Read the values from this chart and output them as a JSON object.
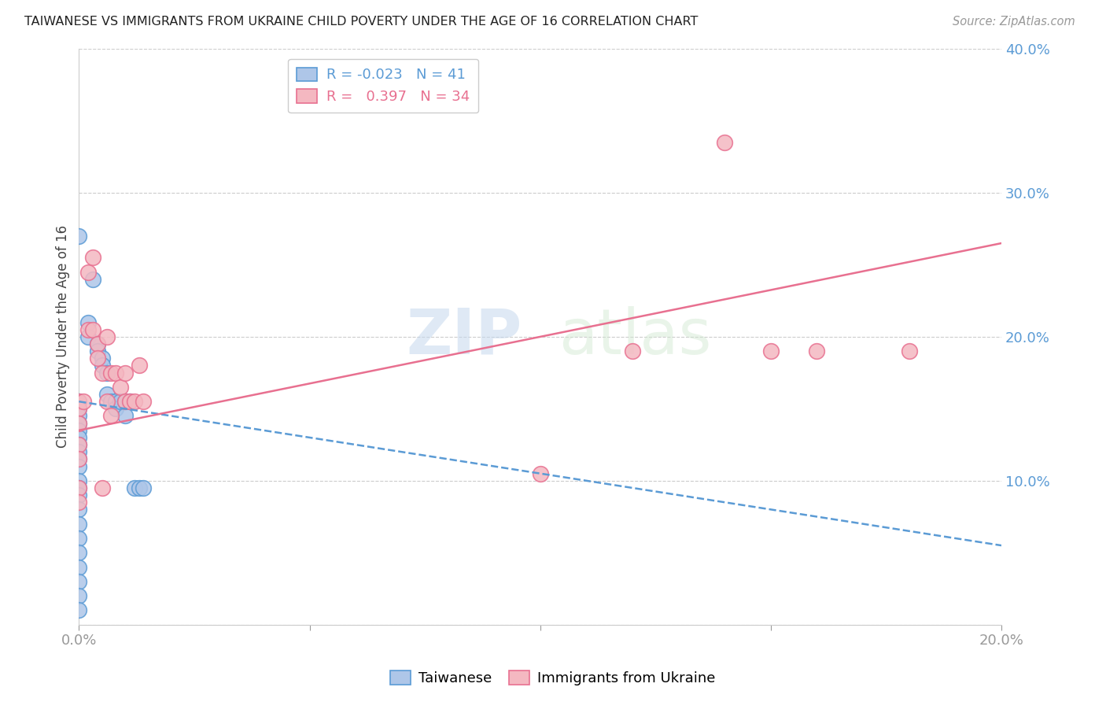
{
  "title": "TAIWANESE VS IMMIGRANTS FROM UKRAINE CHILD POVERTY UNDER THE AGE OF 16 CORRELATION CHART",
  "source": "Source: ZipAtlas.com",
  "ylabel": "Child Poverty Under the Age of 16",
  "xlim": [
    0.0,
    0.2
  ],
  "ylim": [
    0.0,
    0.4
  ],
  "xticks": [
    0.0,
    0.05,
    0.1,
    0.15,
    0.2
  ],
  "yticks": [
    0.0,
    0.1,
    0.2,
    0.3,
    0.4
  ],
  "ytick_labels": [
    "",
    "10.0%",
    "20.0%",
    "30.0%",
    "40.0%"
  ],
  "xtick_labels": [
    "0.0%",
    "",
    "",
    "",
    "20.0%"
  ],
  "taiwanese_color": "#aec6e8",
  "ukraine_color": "#f4b8c1",
  "taiwanese_edge": "#5b9bd5",
  "ukraine_edge": "#e87090",
  "trend_taiwanese_color": "#5b9bd5",
  "trend_ukraine_color": "#e87090",
  "legend_R_taiwanese": "-0.023",
  "legend_N_taiwanese": "41",
  "legend_R_ukraine": "0.397",
  "legend_N_ukraine": "34",
  "taiwanese_x": [
    0.0,
    0.0,
    0.0,
    0.0,
    0.0,
    0.0,
    0.0,
    0.0,
    0.0,
    0.0,
    0.0,
    0.0,
    0.0,
    0.0,
    0.0,
    0.0,
    0.0,
    0.0,
    0.0,
    0.0,
    0.0,
    0.002,
    0.002,
    0.003,
    0.004,
    0.004,
    0.005,
    0.005,
    0.006,
    0.006,
    0.007,
    0.008,
    0.008,
    0.009,
    0.01,
    0.01,
    0.011,
    0.012,
    0.013,
    0.014,
    0.0
  ],
  "taiwanese_y": [
    0.155,
    0.15,
    0.145,
    0.14,
    0.135,
    0.13,
    0.125,
    0.12,
    0.115,
    0.11,
    0.1,
    0.095,
    0.09,
    0.08,
    0.07,
    0.06,
    0.05,
    0.04,
    0.03,
    0.02,
    0.01,
    0.21,
    0.2,
    0.24,
    0.195,
    0.19,
    0.185,
    0.18,
    0.175,
    0.16,
    0.155,
    0.155,
    0.15,
    0.155,
    0.155,
    0.145,
    0.155,
    0.095,
    0.095,
    0.095,
    0.27
  ],
  "ukraine_x": [
    0.0,
    0.0,
    0.0,
    0.0,
    0.0,
    0.0,
    0.0,
    0.001,
    0.002,
    0.002,
    0.003,
    0.003,
    0.004,
    0.004,
    0.005,
    0.005,
    0.006,
    0.006,
    0.007,
    0.007,
    0.008,
    0.009,
    0.01,
    0.01,
    0.011,
    0.012,
    0.013,
    0.014,
    0.1,
    0.12,
    0.14,
    0.15,
    0.16,
    0.18
  ],
  "ukraine_y": [
    0.155,
    0.15,
    0.14,
    0.125,
    0.115,
    0.095,
    0.085,
    0.155,
    0.245,
    0.205,
    0.255,
    0.205,
    0.195,
    0.185,
    0.175,
    0.095,
    0.2,
    0.155,
    0.145,
    0.175,
    0.175,
    0.165,
    0.175,
    0.155,
    0.155,
    0.155,
    0.18,
    0.155,
    0.105,
    0.19,
    0.335,
    0.19,
    0.19,
    0.19
  ],
  "trend_tw_x0": 0.0,
  "trend_tw_x1": 0.2,
  "trend_tw_y0": 0.155,
  "trend_tw_y1": 0.055,
  "trend_uk_x0": 0.0,
  "trend_uk_x1": 0.2,
  "trend_uk_y0": 0.135,
  "trend_uk_y1": 0.265
}
